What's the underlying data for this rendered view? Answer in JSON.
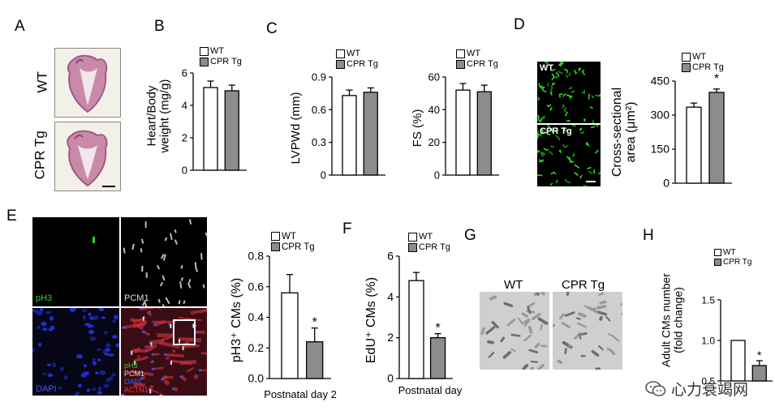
{
  "panels": {
    "A": {
      "letter": "A",
      "labels": [
        "WT",
        "CPR Tg"
      ]
    },
    "B": {
      "letter": "B"
    },
    "C": {
      "letter": "C"
    },
    "D": {
      "letter": "D",
      "image_labels": [
        "WT",
        "CPR Tg"
      ]
    },
    "E": {
      "letter": "E",
      "channels": {
        "pH3": "pH3",
        "PCM1": "PCM1",
        "DAPI": "DAPI",
        "merge": [
          "pH3",
          "PCM1",
          "DAPI",
          "ACTN1"
        ]
      }
    },
    "F": {
      "letter": "F"
    },
    "G": {
      "letter": "G",
      "labels": [
        "WT",
        "CPR Tg"
      ]
    },
    "H": {
      "letter": "H"
    }
  },
  "legend": {
    "wt": "WT",
    "cpr": "CPR Tg"
  },
  "colors": {
    "wt": "#ffffff",
    "cpr": "#8c8c8c",
    "green": "#2fd12f",
    "red": "#d02020",
    "blue": "#2030d0"
  },
  "watermark": "心力衰竭网",
  "chart_data": [
    {
      "id": "B",
      "type": "bar",
      "categories": [
        "WT",
        "CPR Tg"
      ],
      "values": [
        5.1,
        4.9
      ],
      "errors": [
        0.4,
        0.35
      ],
      "ylabel": "Heart/Body\nweight (mg/g)",
      "ylim": [
        0,
        6
      ],
      "yticks": [
        "0",
        "2",
        "4",
        "6"
      ],
      "xlabel": "",
      "significance": []
    },
    {
      "id": "C1",
      "type": "bar",
      "categories": [
        "WT",
        "CPR Tg"
      ],
      "values": [
        0.73,
        0.76
      ],
      "errors": [
        0.05,
        0.04
      ],
      "ylabel": "LVPWd (mm)",
      "ylim": [
        0,
        0.9
      ],
      "yticks": [
        "0",
        "0.3",
        "0.6",
        "0.9"
      ],
      "xlabel": "",
      "significance": []
    },
    {
      "id": "C2",
      "type": "bar",
      "categories": [
        "WT",
        "CPR Tg"
      ],
      "values": [
        52,
        51
      ],
      "errors": [
        4,
        4
      ],
      "ylabel": "FS (%)",
      "ylim": [
        0,
        60
      ],
      "yticks": [
        "0",
        "20",
        "40",
        "60"
      ],
      "xlabel": "",
      "significance": []
    },
    {
      "id": "D",
      "type": "bar",
      "categories": [
        "WT",
        "CPR Tg"
      ],
      "values": [
        335,
        400
      ],
      "errors": [
        18,
        15
      ],
      "ylabel": "Cross-sectional\narea (μm²)",
      "ylim": [
        0,
        450
      ],
      "yticks": [
        "0",
        "150",
        "300",
        "450"
      ],
      "xlabel": "",
      "significance": [
        "",
        "*"
      ]
    },
    {
      "id": "E",
      "type": "bar",
      "categories": [
        "WT",
        "CPR Tg"
      ],
      "values": [
        0.56,
        0.24
      ],
      "errors": [
        0.12,
        0.09
      ],
      "ylabel": "pH3⁺ CMs (%)",
      "ylim": [
        0,
        0.8
      ],
      "yticks": [
        "0.0",
        "0.2",
        "0.4",
        "0.6",
        "0.8"
      ],
      "xlabel": "Postnatal day 2",
      "significance": [
        "",
        "*"
      ]
    },
    {
      "id": "F",
      "type": "bar",
      "categories": [
        "WT",
        "CPR Tg"
      ],
      "values": [
        4.8,
        2.0
      ],
      "errors": [
        0.4,
        0.2
      ],
      "ylabel": "EdU⁺ CMs (%)",
      "ylim": [
        0,
        6
      ],
      "yticks": [
        "0",
        "2",
        "4",
        "6"
      ],
      "xlabel": "Postnatal day",
      "significance": [
        "",
        "*"
      ]
    },
    {
      "id": "H",
      "type": "bar",
      "categories": [
        "WT",
        "CPR Tg"
      ],
      "values": [
        1.0,
        0.69
      ],
      "errors": [
        0,
        0.06
      ],
      "ylabel": "Adult CMs number\n(fold change)",
      "ylim": [
        0.5,
        1.5
      ],
      "yticks": [
        "0.5",
        "1.0",
        "1.5"
      ],
      "xlabel": "",
      "significance": [
        "",
        "*"
      ]
    }
  ]
}
